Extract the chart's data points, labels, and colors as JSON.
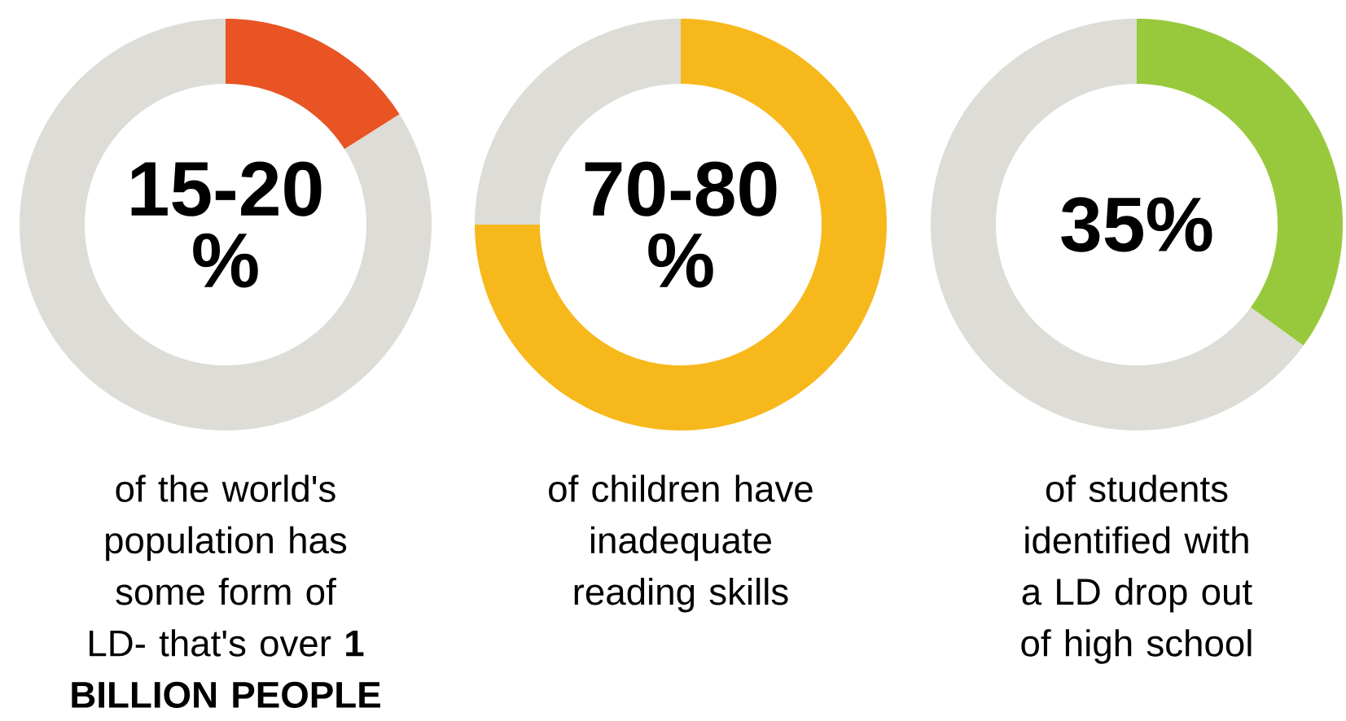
{
  "chart_data": [
    {
      "type": "donut",
      "categories": [
        null,
        null
      ],
      "values": [
        16,
        84
      ],
      "colors": [
        "#e85424",
        "#dddcd6"
      ],
      "annotations": [
        "15-20 %"
      ],
      "subtitle": "of the world's population has some form of LD- that's over **1 BILLION PEOPLE**"
    },
    {
      "type": "donut",
      "categories": [
        null,
        null
      ],
      "values": [
        75,
        25
      ],
      "colors": [
        "#f7b81c",
        "#dddcd6"
      ],
      "annotations": [
        "70-80 %"
      ],
      "subtitle": "of children have inadequate reading skills"
    },
    {
      "type": "donut",
      "categories": [
        null,
        null
      ],
      "values": [
        35,
        65
      ],
      "colors": [
        "#98c93c",
        "#dddcd6"
      ],
      "annotations": [
        "35%"
      ],
      "subtitle": "of students identified with a LD drop out of high school"
    }
  ]
}
